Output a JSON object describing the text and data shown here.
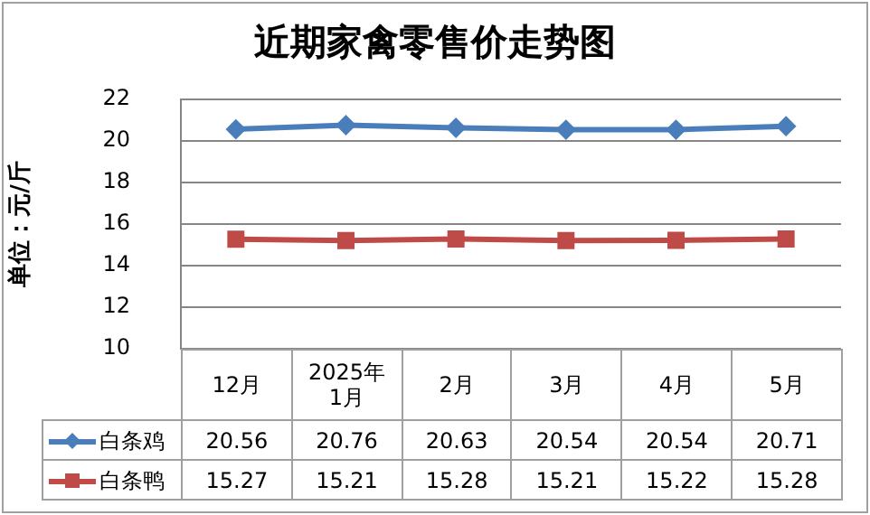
{
  "chart_data": {
    "type": "line",
    "title": "近期家禽零售价走势图",
    "ylabel": "单位：元/斤",
    "categories": [
      "12月",
      "2025年1月",
      "2月",
      "3月",
      "4月",
      "5月"
    ],
    "series": [
      {
        "name": "白条鸡",
        "color": "#4a7ebb",
        "marker": "diamond",
        "values": [
          20.56,
          20.76,
          20.63,
          20.54,
          20.54,
          20.71
        ]
      },
      {
        "name": "白条鸭",
        "color": "#be4b48",
        "marker": "square",
        "values": [
          15.27,
          15.21,
          15.28,
          15.21,
          15.22,
          15.28
        ]
      }
    ],
    "ylim": [
      10,
      22
    ],
    "yticks": [
      10,
      12,
      14,
      16,
      18,
      20,
      22
    ],
    "grid": "y",
    "legend": "bottom",
    "data_labels": true
  }
}
